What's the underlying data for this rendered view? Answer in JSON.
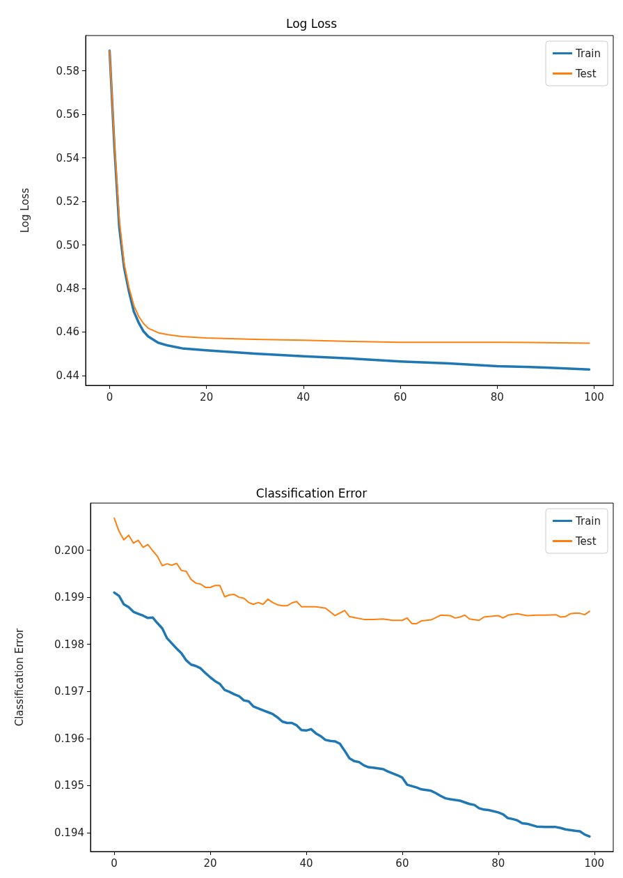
{
  "chart_data": [
    {
      "type": "line",
      "title": "Log Loss",
      "ylabel": "Log Loss",
      "xlim": [
        -4.95,
        103.95
      ],
      "xticks": [
        0,
        20,
        40,
        60,
        80,
        100
      ],
      "ylim": [
        0.4355,
        0.5962
      ],
      "yticks": [
        0.44,
        0.46,
        0.48,
        {
          "value": 0.5,
          "label": "0.50"
        },
        0.52,
        0.54,
        0.56,
        0.58
      ],
      "grid": false,
      "legend": "top right",
      "marker": "none",
      "line_style": "solid",
      "series": [
        {
          "name": "Train",
          "color": "#1f77b4",
          "x": [
            0,
            1,
            2,
            3,
            4,
            5,
            6,
            7,
            8,
            10,
            12,
            15,
            20,
            30,
            40,
            50,
            60,
            70,
            80,
            90,
            99
          ],
          "values": [
            0.5892,
            0.5447,
            0.508,
            0.4896,
            0.4786,
            0.4694,
            0.4643,
            0.4603,
            0.4579,
            0.4551,
            0.4538,
            0.4525,
            0.4516,
            0.4501,
            0.4489,
            0.4478,
            0.4465,
            0.4456,
            0.4443,
            0.4437,
            0.4428
          ]
        },
        {
          "name": "Test",
          "color": "#ff7f0e",
          "x": [
            0,
            1,
            2,
            3,
            4,
            5,
            6,
            7,
            8,
            10,
            12,
            15,
            20,
            30,
            40,
            50,
            60,
            70,
            80,
            90,
            99
          ],
          "values": [
            0.5892,
            0.5466,
            0.5117,
            0.4915,
            0.4805,
            0.4722,
            0.4672,
            0.4639,
            0.4617,
            0.4597,
            0.4588,
            0.4579,
            0.4573,
            0.4566,
            0.4562,
            0.4557,
            0.4553,
            0.4553,
            0.4553,
            0.4551,
            0.4549
          ]
        }
      ]
    },
    {
      "type": "line",
      "title": "Classification Error",
      "ylabel": "Classification Error",
      "xlim": [
        -4.95,
        103.95
      ],
      "xticks": [
        0,
        20,
        40,
        60,
        80,
        100
      ],
      "ylim": [
        0.1936,
        0.201
      ],
      "yticks": [
        0.194,
        0.195,
        0.196,
        0.197,
        0.198,
        0.199,
        {
          "value": 0.2,
          "label": "0.200"
        }
      ],
      "grid": false,
      "legend": "top right",
      "marker": "none",
      "line_style": "solid",
      "series": [
        {
          "name": "Train",
          "color": "#1f77b4",
          "x": [
            0,
            1,
            2,
            3,
            4,
            5,
            6,
            7,
            8,
            9,
            10,
            11,
            12,
            13,
            14,
            15,
            16,
            17,
            18,
            19,
            20,
            21,
            22,
            23,
            24,
            25,
            26,
            27,
            28,
            29,
            30,
            31,
            32,
            33,
            34,
            35,
            36,
            37,
            38,
            39,
            40,
            41,
            42,
            43,
            44,
            45,
            46,
            47,
            48,
            49,
            50,
            51,
            52,
            53,
            54,
            56,
            57,
            58,
            59,
            60,
            61,
            62,
            63,
            64,
            66,
            67,
            68,
            69,
            70,
            72,
            74,
            75,
            76,
            77,
            78,
            80,
            81,
            82,
            83,
            84,
            85,
            86,
            87,
            88,
            90,
            92,
            93,
            94,
            96,
            97,
            98,
            99
          ],
          "values": [
            0.1991,
            0.19903,
            0.19885,
            0.19879,
            0.19869,
            0.19865,
            0.19861,
            0.19856,
            0.19857,
            0.19845,
            0.19834,
            0.19813,
            0.19802,
            0.19791,
            0.19781,
            0.19766,
            0.19757,
            0.19754,
            0.19749,
            0.19739,
            0.1973,
            0.19722,
            0.19716,
            0.19703,
            0.19699,
            0.19694,
            0.1969,
            0.19681,
            0.19679,
            0.19668,
            0.19664,
            0.1966,
            0.19656,
            0.19652,
            0.19645,
            0.19636,
            0.19633,
            0.19633,
            0.19628,
            0.19618,
            0.19617,
            0.1962,
            0.19611,
            0.19605,
            0.19597,
            0.19595,
            0.19594,
            0.19589,
            0.19574,
            0.19558,
            0.19552,
            0.1955,
            0.19543,
            0.19539,
            0.19538,
            0.19535,
            0.1953,
            0.19526,
            0.19522,
            0.19517,
            0.19502,
            0.19499,
            0.19496,
            0.19492,
            0.19489,
            0.19484,
            0.19478,
            0.19473,
            0.19471,
            0.19468,
            0.19461,
            0.19459,
            0.19452,
            0.19449,
            0.19448,
            0.19443,
            0.19439,
            0.19431,
            0.19429,
            0.19426,
            0.1942,
            0.19419,
            0.19416,
            0.19413,
            0.19412,
            0.19412,
            0.1941,
            0.19407,
            0.19404,
            0.19403,
            0.19396,
            0.19392
          ]
        },
        {
          "name": "Test",
          "color": "#ff7f0e",
          "x": [
            0,
            1,
            2,
            3,
            4,
            5,
            6,
            7,
            8,
            9,
            10,
            11,
            12,
            13,
            14,
            15,
            16,
            17,
            18,
            19,
            20,
            21,
            22,
            23,
            24,
            25,
            26,
            27,
            28,
            29,
            30,
            31,
            32,
            33,
            34,
            35,
            36,
            37,
            38,
            39,
            40,
            42,
            44,
            46,
            48,
            49,
            50,
            52,
            54,
            56,
            58,
            60,
            61,
            62,
            63,
            64,
            66,
            68,
            70,
            71,
            72,
            73,
            74,
            76,
            77,
            78,
            80,
            81,
            82,
            84,
            86,
            88,
            90,
            92,
            93,
            94,
            95,
            96,
            97,
            98,
            99
          ],
          "values": [
            0.20068,
            0.2004,
            0.20022,
            0.20032,
            0.20015,
            0.20021,
            0.20006,
            0.20012,
            0.19999,
            0.19987,
            0.19967,
            0.19971,
            0.19968,
            0.19972,
            0.19957,
            0.19955,
            0.19938,
            0.1993,
            0.19928,
            0.19921,
            0.19921,
            0.19925,
            0.19925,
            0.19901,
            0.19905,
            0.19906,
            0.199,
            0.19898,
            0.19889,
            0.19885,
            0.19889,
            0.19885,
            0.19896,
            0.19889,
            0.19884,
            0.19882,
            0.19882,
            0.19888,
            0.19891,
            0.1988,
            0.1988,
            0.1988,
            0.19877,
            0.19861,
            0.19872,
            0.19859,
            0.19857,
            0.19853,
            0.19853,
            0.19854,
            0.19851,
            0.19851,
            0.19856,
            0.19844,
            0.19844,
            0.1985,
            0.19852,
            0.19862,
            0.19861,
            0.19856,
            0.19858,
            0.19862,
            0.19854,
            0.19851,
            0.19858,
            0.19859,
            0.19861,
            0.19856,
            0.19862,
            0.19865,
            0.19861,
            0.19862,
            0.19862,
            0.19863,
            0.19858,
            0.19859,
            0.19865,
            0.19866,
            0.19866,
            0.19863,
            0.1987
          ]
        }
      ]
    }
  ]
}
